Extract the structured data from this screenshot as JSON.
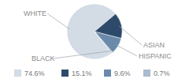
{
  "chart_data": {
    "type": "pie",
    "categories": [
      "WHITE",
      "ASIAN",
      "HISPANIC",
      "BLACK"
    ],
    "values": [
      74.6,
      15.1,
      9.6,
      0.7
    ],
    "value_labels": [
      "74.6%",
      "15.1%",
      "9.6%",
      "0.7%"
    ],
    "colors": [
      "#d3dbe4",
      "#2e4a6b",
      "#6b8aab",
      "#a9bccd"
    ],
    "legend": "bottom"
  }
}
